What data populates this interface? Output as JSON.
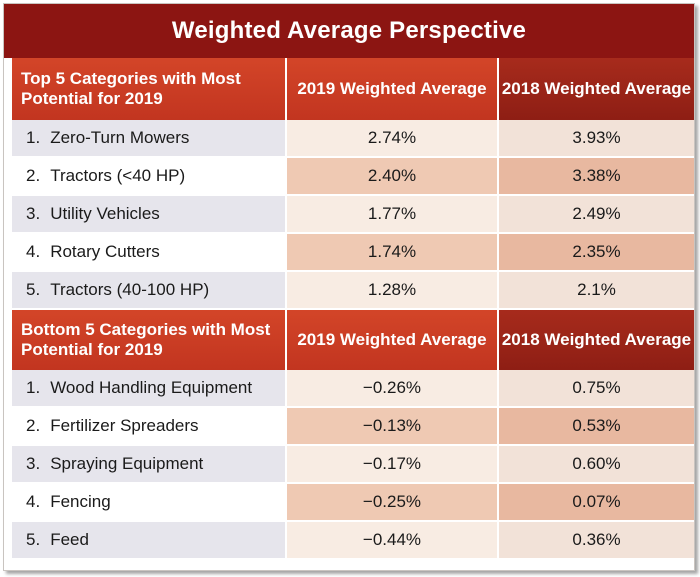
{
  "title": "Weighted Average Perspective",
  "sections": [
    {
      "header": {
        "category": "Top 5 Categories with Most Potential for 2019",
        "col2019": "2019 Weighted Average",
        "col2018": "2018 Weighted Average"
      },
      "rows": [
        {
          "rank": "1.",
          "name": "Zero-Turn Mowers",
          "v2019": "2.74%",
          "v2018": "3.93%"
        },
        {
          "rank": "2.",
          "name": "Tractors (<40 HP)",
          "v2019": "2.40%",
          "v2018": "3.38%"
        },
        {
          "rank": "3.",
          "name": "Utility Vehicles",
          "v2019": "1.77%",
          "v2018": "2.49%"
        },
        {
          "rank": "4.",
          "name": "Rotary Cutters",
          "v2019": "1.74%",
          "v2018": "2.35%"
        },
        {
          "rank": "5.",
          "name": "Tractors (40-100 HP)",
          "v2019": "1.28%",
          "v2018": "2.1%"
        }
      ]
    },
    {
      "header": {
        "category": "Bottom 5 Categories with Most Potential for 2019",
        "col2019": "2019 Weighted Average",
        "col2018": "2018 Weighted Average"
      },
      "rows": [
        {
          "rank": "1.",
          "name": "Wood Handling Equipment",
          "v2019": "−0.26%",
          "v2018": "0.75%"
        },
        {
          "rank": "2.",
          "name": "Fertilizer Spreaders",
          "v2019": "−0.13%",
          "v2018": "0.53%"
        },
        {
          "rank": "3.",
          "name": "Spraying Equipment",
          "v2019": "−0.17%",
          "v2018": "0.60%"
        },
        {
          "rank": "4.",
          "name": "Fencing",
          "v2019": "−0.25%",
          "v2018": "0.07%"
        },
        {
          "rank": "5.",
          "name": "Feed",
          "v2019": "−0.44%",
          "v2018": "0.36%"
        }
      ]
    }
  ],
  "colors": {
    "title_bg": "#8c1512",
    "header_bg": "#c23520",
    "header_dark_bg": "#8e1e14"
  },
  "chart_data": {
    "type": "table",
    "title": "Weighted Average Perspective",
    "columns": [
      "2019 Weighted Average",
      "2018 Weighted Average"
    ],
    "groups": [
      {
        "name": "Top 5 Categories with Most Potential for 2019",
        "categories": [
          "Zero-Turn Mowers",
          "Tractors (<40 HP)",
          "Utility Vehicles",
          "Rotary Cutters",
          "Tractors (40-100 HP)"
        ],
        "series": [
          {
            "name": "2019 Weighted Average",
            "values": [
              2.74,
              2.4,
              1.77,
              1.74,
              1.28
            ]
          },
          {
            "name": "2018 Weighted Average",
            "values": [
              3.93,
              3.38,
              2.49,
              2.35,
              2.1
            ]
          }
        ]
      },
      {
        "name": "Bottom 5 Categories with Most Potential for 2019",
        "categories": [
          "Wood Handling Equipment",
          "Fertilizer Spreaders",
          "Spraying Equipment",
          "Fencing",
          "Feed"
        ],
        "series": [
          {
            "name": "2019 Weighted Average",
            "values": [
              -0.26,
              -0.13,
              -0.17,
              -0.25,
              -0.44
            ]
          },
          {
            "name": "2018 Weighted Average",
            "values": [
              0.75,
              0.53,
              0.6,
              0.07,
              0.36
            ]
          }
        ]
      }
    ]
  }
}
